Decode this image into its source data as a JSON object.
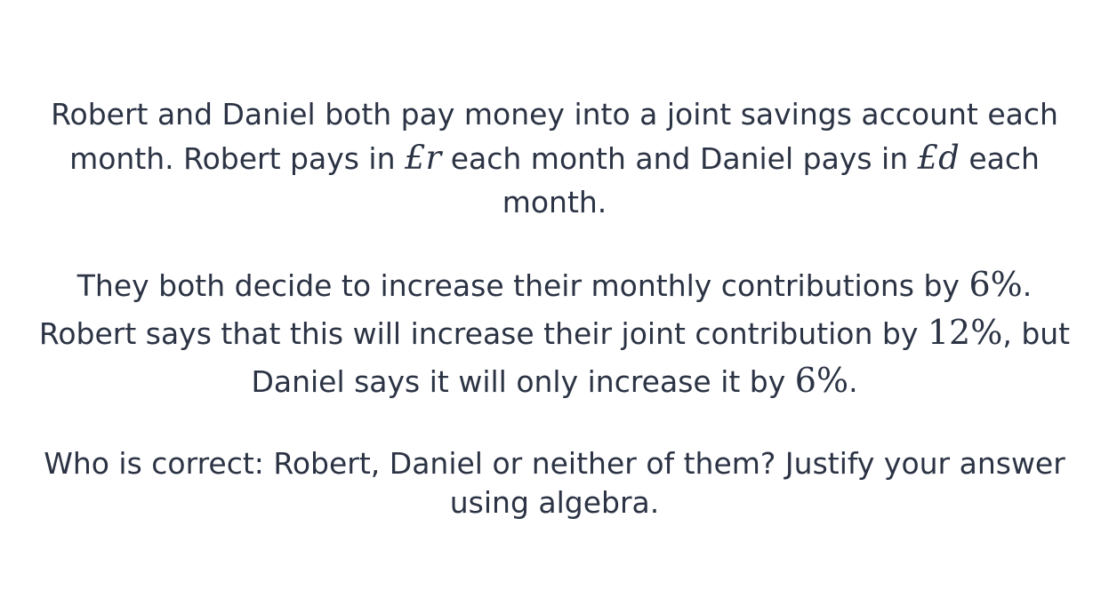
{
  "question": {
    "paragraph1": {
      "part1": "Robert and Daniel both pay money into a joint savings account each month. Robert pays in ",
      "robert_amount": "£r",
      "part2": " each month and Daniel pays in ",
      "daniel_amount": "£d",
      "part3": " each month."
    },
    "paragraph2": {
      "part1": "They both decide to increase their monthly contributions by ",
      "increase_percent": "6%",
      "part2": ". Robert says that this will increase their joint contribution by ",
      "robert_claim": "12%",
      "part3": ", but Daniel says it will only increase it by ",
      "daniel_claim": "6%",
      "part4": "."
    },
    "paragraph3": {
      "text": "Who is correct: Robert, Daniel or neither of them? Justify your answer using algebra."
    }
  }
}
